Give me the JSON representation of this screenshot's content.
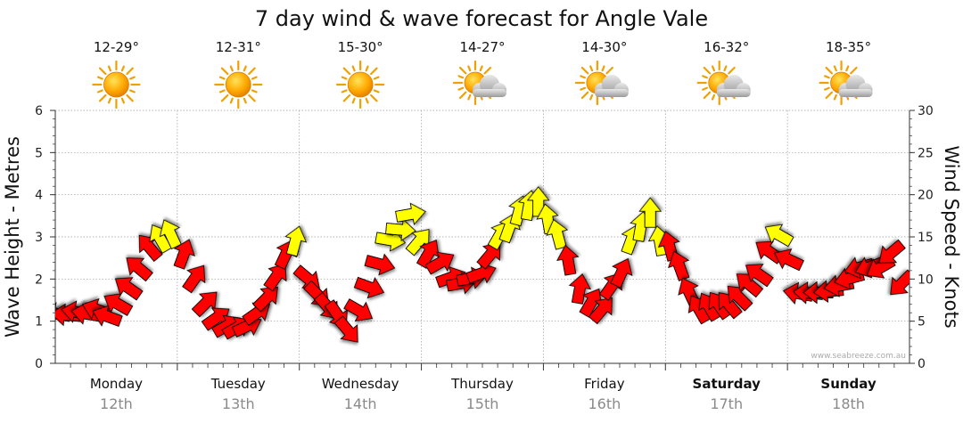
{
  "chart_data": {
    "type": "line",
    "title": "7 day wind & wave forecast for Angle Vale",
    "ylabel_left": "Wave Height - Metres",
    "ylabel_right": "Wind Speed - Knots",
    "left_ylim": [
      0,
      6
    ],
    "left_ticks": [
      "0",
      "1",
      "2",
      "3",
      "4",
      "5",
      "6"
    ],
    "right_ylim": [
      0,
      30
    ],
    "right_ticks": [
      "0",
      "5",
      "10",
      "15",
      "20",
      "25",
      "30"
    ],
    "days": [
      {
        "name": "Monday",
        "date": "12th",
        "temp": "12-29°",
        "weather": "sunny",
        "bold": false
      },
      {
        "name": "Tuesday",
        "date": "13th",
        "temp": "12-31°",
        "weather": "sunny",
        "bold": false
      },
      {
        "name": "Wednesday",
        "date": "14th",
        "temp": "15-30°",
        "weather": "sunny",
        "bold": false
      },
      {
        "name": "Thursday",
        "date": "15th",
        "temp": "14-27°",
        "weather": "partly-cloudy",
        "bold": false
      },
      {
        "name": "Friday",
        "date": "16th",
        "temp": "14-30°",
        "weather": "partly-cloudy",
        "bold": false
      },
      {
        "name": "Saturday",
        "date": "17th",
        "temp": "16-32°",
        "weather": "partly-cloudy",
        "bold": true
      },
      {
        "name": "Sunday",
        "date": "18th",
        "temp": "18-35°",
        "weather": "partly-cloudy",
        "bold": true
      }
    ],
    "series": [
      {
        "name": "Wind Speed (knots)",
        "unit": "knots",
        "values": [
          5.8,
          5.7,
          6.0,
          5.8,
          6.2,
          5.4,
          6.8,
          8.7,
          11.0,
          13.4,
          14.4,
          14.9,
          12.5,
          9.7,
          6.8,
          5.1,
          4.2,
          4.0,
          4.2,
          5.7,
          7.4,
          9.9,
          12.5,
          14.0,
          10.4,
          8.5,
          7.1,
          6.2,
          4.3,
          6.5,
          9.2,
          11.9,
          14.7,
          15.9,
          17.6,
          14.1,
          12.6,
          11.7,
          10.0,
          9.4,
          10.0,
          10.5,
          12.5,
          14.8,
          15.6,
          17.6,
          18.2,
          18.6,
          16.6,
          14.8,
          11.7,
          8.3,
          6.8,
          6.0,
          8.8,
          10.3,
          14.2,
          15.7,
          17.3,
          14.0,
          13.4,
          11.1,
          8.0,
          6.0,
          6.3,
          6.5,
          6.6,
          7.5,
          9.1,
          10.3,
          13.0,
          15.0,
          12.1,
          8.2,
          8.3,
          8.4,
          8.6,
          9.3,
          10.2,
          11.5,
          11.6,
          11.6,
          13.4,
          9.8
        ],
        "direction_deg": [
          100,
          95,
          100,
          100,
          110,
          110,
          120,
          125,
          130,
          140,
          150,
          155,
          200,
          215,
          225,
          235,
          240,
          240,
          245,
          235,
          225,
          215,
          205,
          195,
          310,
          315,
          320,
          325,
          320,
          300,
          290,
          285,
          280,
          275,
          260,
          220,
          210,
          240,
          250,
          260,
          260,
          250,
          220,
          210,
          200,
          195,
          190,
          180,
          170,
          165,
          170,
          190,
          210,
          220,
          215,
          205,
          200,
          190,
          180,
          170,
          165,
          160,
          155,
          150,
          150,
          145,
          140,
          135,
          130,
          125,
          125,
          120,
          115,
          100,
          95,
          90,
          85,
          80,
          75,
          75,
          70,
          60,
          50,
          45
        ]
      }
    ],
    "colors": {
      "low_wind": "#ff0000",
      "high_wind": "#ffff00",
      "grid": "#9a9a9a"
    },
    "watermark": "www.seabreeze.com.au"
  }
}
